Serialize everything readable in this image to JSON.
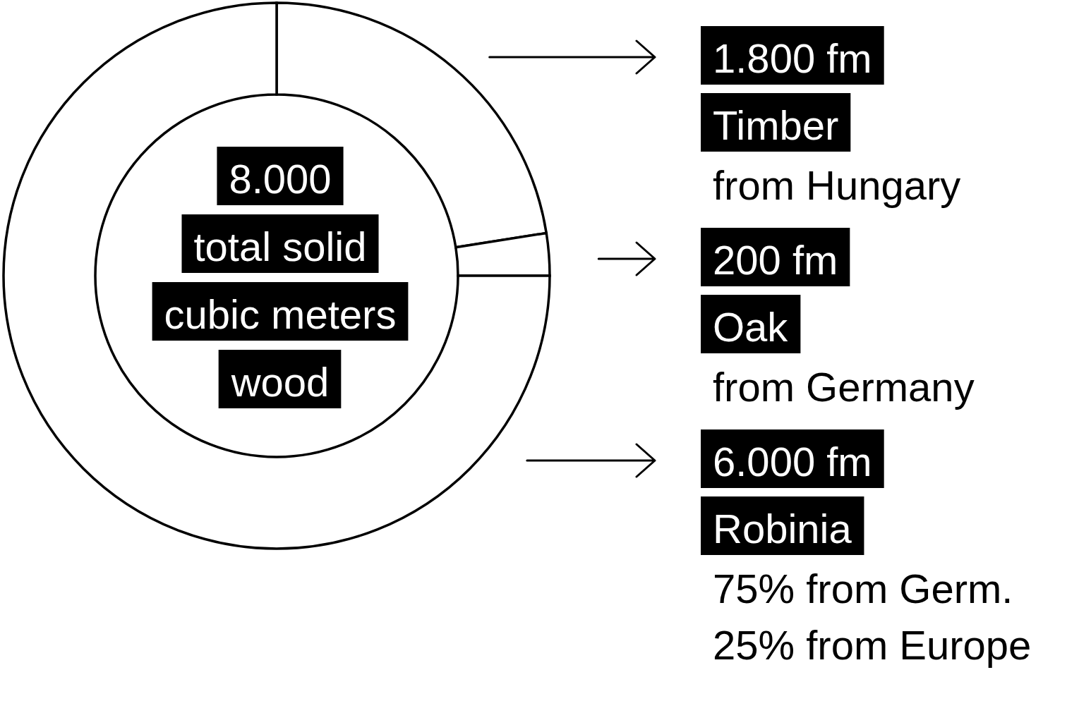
{
  "chart_data": {
    "type": "donut",
    "title": "8.000\ntotal solid\ncubic meters\nwood",
    "categories": [
      "Timber",
      "Oak",
      "Robinia"
    ],
    "values": [
      1800,
      200,
      6000
    ],
    "colors": [
      "#ffffff",
      "#ffffff",
      "#ffffff"
    ],
    "value_labels": [
      "1.800 fm",
      "200 fm",
      "6.000 fm"
    ],
    "legend": "right",
    "annotations": [
      "from Hungary",
      "from Germany",
      "75% from Germ.\n25% from Europe"
    ]
  }
}
